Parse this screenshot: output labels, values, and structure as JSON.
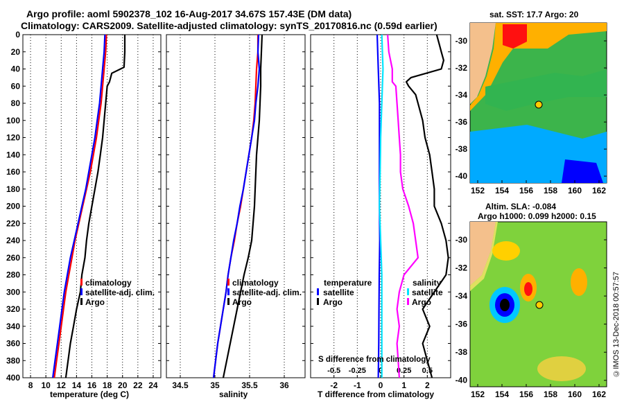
{
  "header": {
    "line1": "Argo profile: aoml 5902378_102 16-Aug-2017 34.67S 157.43E (DM data)",
    "line2": "Climatology: CARS2009. Satellite-adjusted climatology: synTS_20170816.nc (0.59d earlier)"
  },
  "colors": {
    "climatology": "#ff0000",
    "satellite": "#0000ff",
    "argo": "#000000",
    "salinity_diff": "#ff00ff",
    "sal_sat": "#00e5ff",
    "map_marker": "#ffcc00"
  },
  "chart_data": [
    {
      "type": "line",
      "id": "temperature",
      "xlabel": "temperature (deg C)",
      "ylabel": "depth",
      "xlim": [
        7,
        25
      ],
      "ylim": [
        400,
        0
      ],
      "xticks": [
        8,
        10,
        12,
        14,
        16,
        18,
        20,
        22,
        24
      ],
      "yticks": [
        0,
        20,
        40,
        60,
        80,
        100,
        120,
        140,
        160,
        180,
        200,
        220,
        240,
        260,
        280,
        300,
        320,
        340,
        360,
        380,
        400
      ],
      "legend": [
        "climatology",
        "satellite-adj. clim.",
        "Argo"
      ],
      "series": [
        {
          "name": "climatology",
          "color": "red",
          "depth": [
            0,
            20,
            40,
            60,
            80,
            100,
            120,
            140,
            160,
            180,
            200,
            220,
            240,
            260,
            280,
            300,
            320,
            340,
            360,
            380,
            400
          ],
          "values": [
            17.9,
            17.8,
            17.6,
            17.4,
            17.2,
            16.9,
            16.6,
            16.2,
            15.8,
            15.3,
            14.8,
            14.3,
            13.8,
            13.4,
            13.0,
            12.6,
            12.3,
            12.0,
            11.7,
            11.4,
            11.1
          ]
        },
        {
          "name": "satellite-adj. clim.",
          "color": "blue",
          "depth": [
            0,
            20,
            40,
            60,
            80,
            100,
            120,
            140,
            160,
            180,
            200,
            220,
            240,
            260,
            280,
            300,
            320,
            340,
            360,
            380,
            400
          ],
          "values": [
            17.7,
            17.6,
            17.4,
            17.2,
            17.0,
            16.7,
            16.4,
            16.0,
            15.6,
            15.2,
            14.7,
            14.2,
            13.7,
            13.2,
            12.8,
            12.4,
            12.1,
            11.8,
            11.5,
            11.2,
            10.9
          ]
        },
        {
          "name": "Argo",
          "color": "black",
          "depth": [
            0,
            20,
            38,
            45,
            55,
            60,
            80,
            100,
            120,
            140,
            160,
            180,
            200,
            220,
            240,
            260,
            280,
            300,
            320,
            340,
            360,
            380,
            400
          ],
          "values": [
            20.3,
            20.3,
            20.2,
            18.6,
            18.3,
            18.0,
            17.8,
            17.6,
            17.4,
            17.1,
            16.8,
            16.4,
            16.0,
            15.6,
            15.3,
            15.1,
            14.7,
            14.5,
            14.0,
            13.6,
            13.2,
            12.9,
            12.6
          ]
        }
      ]
    },
    {
      "type": "line",
      "id": "salinity",
      "xlabel": "salinity",
      "xlim": [
        34.3,
        36.3
      ],
      "ylim": [
        400,
        0
      ],
      "xticks": [
        34.5,
        35,
        35.5,
        36
      ],
      "xticklabels": [
        "34.5",
        "35",
        "35.5",
        "36"
      ],
      "legend": [
        "climatology",
        "satellite-adj. clim.",
        "Argo"
      ],
      "series": [
        {
          "name": "climatology",
          "color": "red",
          "depth": [
            0,
            20,
            40,
            60,
            80,
            100,
            120,
            140,
            160,
            180,
            200,
            220,
            240,
            260,
            280,
            300,
            320,
            340,
            360,
            380,
            400
          ],
          "values": [
            35.62,
            35.62,
            35.6,
            35.59,
            35.58,
            35.56,
            35.53,
            35.49,
            35.45,
            35.41,
            35.37,
            35.32,
            35.28,
            35.23,
            35.19,
            35.16,
            35.12,
            35.08,
            35.04,
            35.01,
            34.98
          ]
        },
        {
          "name": "satellite-adj. clim.",
          "color": "blue",
          "depth": [
            0,
            20,
            40,
            60,
            80,
            100,
            120,
            140,
            160,
            180,
            200,
            220,
            240,
            260,
            280,
            300,
            320,
            340,
            360,
            380,
            400
          ],
          "values": [
            35.63,
            35.62,
            35.64,
            35.62,
            35.59,
            35.57,
            35.53,
            35.49,
            35.45,
            35.41,
            35.36,
            35.32,
            35.27,
            35.23,
            35.19,
            35.16,
            35.12,
            35.08,
            35.04,
            35.01,
            34.98
          ]
        },
        {
          "name": "Argo",
          "color": "black",
          "depth": [
            0,
            20,
            40,
            60,
            80,
            100,
            120,
            140,
            160,
            180,
            200,
            220,
            240,
            260,
            280,
            300,
            320,
            340,
            360,
            380,
            400
          ],
          "values": [
            35.68,
            35.67,
            35.66,
            35.66,
            35.65,
            35.64,
            35.62,
            35.6,
            35.59,
            35.58,
            35.57,
            35.55,
            35.53,
            35.48,
            35.42,
            35.37,
            35.32,
            35.27,
            35.22,
            35.17,
            35.12
          ]
        }
      ]
    },
    {
      "type": "line",
      "id": "difference",
      "xlabel": "T difference from climatology",
      "top_xlabel": "S difference from climatology",
      "xlim": [
        -3,
        3
      ],
      "ylim": [
        400,
        0
      ],
      "xticks": [
        -2,
        -1,
        0,
        1,
        2
      ],
      "xticklabels": [
        "-2",
        "-1",
        "0",
        "1",
        "2"
      ],
      "top_xticks": [
        -2,
        -1,
        0,
        1,
        2
      ],
      "top_xticklabels": [
        "-0.5",
        "-0.25",
        "0",
        "0.25",
        "0.5"
      ],
      "legend_left": {
        "title": "temperature",
        "items": [
          "satellite",
          "Argo"
        ]
      },
      "legend_right": {
        "title": "salinity",
        "items": [
          "satellite",
          "Argo"
        ]
      },
      "series": [
        {
          "name": "T satellite",
          "color": "blue",
          "depth": [
            0,
            40,
            80,
            120,
            160,
            200,
            240,
            280,
            320,
            360,
            400
          ],
          "values": [
            -0.15,
            -0.1,
            -0.05,
            -0.05,
            -0.05,
            -0.05,
            -0.04,
            -0.06,
            -0.07,
            -0.08,
            -0.1
          ]
        },
        {
          "name": "S satellite",
          "color": "cyan",
          "depth": [
            0,
            40,
            80,
            120,
            160,
            200,
            240,
            280,
            320,
            360,
            400
          ],
          "values": [
            0.05,
            0.1,
            0.05,
            0.0,
            -0.02,
            -0.05,
            0.0,
            0.05,
            0.05,
            0.05,
            0.05
          ]
        },
        {
          "name": "S Argo",
          "color": "magenta",
          "depth": [
            0,
            20,
            40,
            55,
            60,
            80,
            100,
            120,
            140,
            160,
            180,
            200,
            220,
            240,
            260,
            280,
            300,
            320,
            340,
            360,
            380,
            400
          ],
          "values": [
            0.3,
            0.35,
            0.5,
            0.5,
            0.65,
            0.7,
            0.75,
            0.8,
            0.85,
            0.85,
            0.95,
            1.2,
            1.4,
            1.5,
            1.6,
            1.0,
            0.8,
            0.7,
            0.8,
            0.7,
            0.75,
            0.8
          ]
        },
        {
          "name": "T Argo",
          "color": "black",
          "depth": [
            0,
            10,
            20,
            30,
            40,
            50,
            55,
            60,
            70,
            80,
            100,
            120,
            140,
            160,
            180,
            200,
            220,
            240,
            260,
            280,
            300,
            320,
            340,
            360,
            380,
            400
          ],
          "values": [
            2.4,
            2.5,
            2.6,
            2.7,
            2.6,
            1.3,
            1.1,
            1.2,
            1.5,
            1.6,
            1.8,
            1.9,
            2.1,
            2.2,
            2.3,
            2.3,
            2.6,
            2.8,
            2.9,
            2.8,
            2.3,
            1.8,
            2.1,
            1.8,
            2.0,
            2.2
          ]
        }
      ]
    }
  ],
  "maps": {
    "sst": {
      "title": "sat. SST: 17.7 Argo: 20",
      "xticks": [
        "152",
        "154",
        "156",
        "158",
        "160",
        "162"
      ],
      "yticks": [
        "-30",
        "-32",
        "-34",
        "-36",
        "-38",
        "-40"
      ]
    },
    "sla": {
      "title1": "Altim. SLA: -0.084",
      "title2": "Argo h1000: 0.099 h2000: 0.15",
      "xticks": [
        "152",
        "154",
        "156",
        "158",
        "160",
        "162"
      ],
      "yticks": [
        "-30",
        "-32",
        "-34",
        "-36",
        "-38",
        "-40"
      ]
    },
    "credit": "©IMOS 13-Dec-2018 00:57:57"
  }
}
